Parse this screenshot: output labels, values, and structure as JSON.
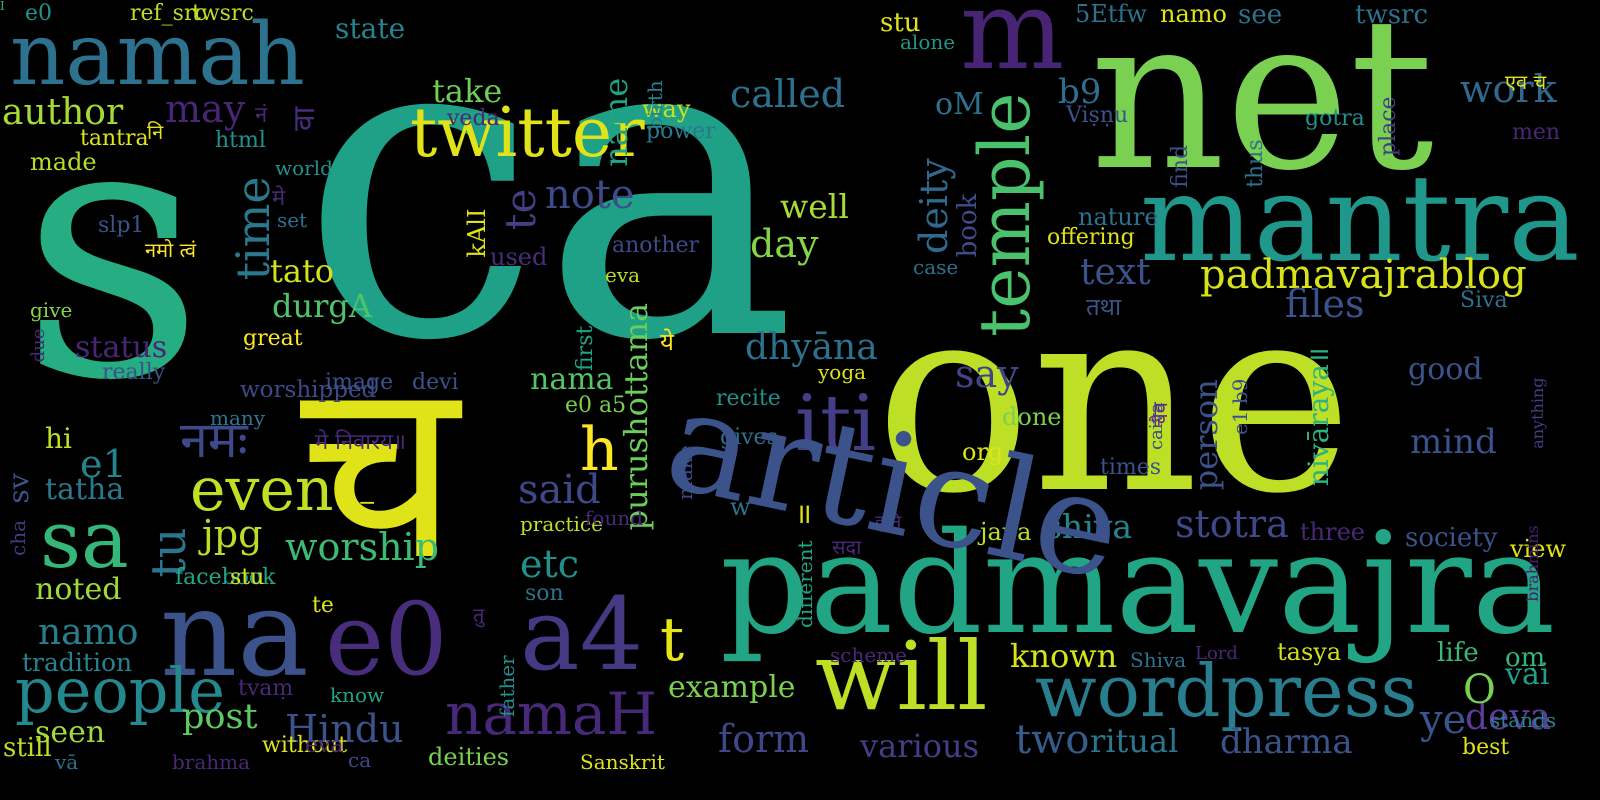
{
  "words": [
    {
      "text": "ca",
      "color": "#1fa187"
    },
    {
      "text": "s",
      "color": "#26ad81"
    },
    {
      "text": "one",
      "color": "#bddf26"
    },
    {
      "text": "net",
      "color": "#7ad151"
    },
    {
      "text": "च",
      "color": "#dfe318"
    },
    {
      "text": "padmavajra",
      "color": "#21a585"
    },
    {
      "text": "mantra",
      "color": "#1f988b"
    },
    {
      "text": "namah",
      "color": "#2c728e"
    },
    {
      "text": "na",
      "color": "#3b528b"
    },
    {
      "text": "e0",
      "color": "#472d7b"
    },
    {
      "text": "a4",
      "color": "#443983"
    },
    {
      "text": "m",
      "color": "#482475"
    },
    {
      "text": "will",
      "color": "#bddf26"
    },
    {
      "text": "twitter",
      "color": "#dfe318"
    },
    {
      "text": "iti",
      "color": "#433e85"
    },
    {
      "text": "sa",
      "color": "#35b779"
    },
    {
      "text": "wordpress",
      "color": "#287d8e"
    },
    {
      "text": "people",
      "color": "#23898e"
    },
    {
      "text": "namaH",
      "color": "#482878"
    },
    {
      "text": "temple",
      "color": "#4ac16d"
    },
    {
      "text": "padmavajrablog",
      "color": "#d8e219"
    },
    {
      "text": "even",
      "color": "#c2df23"
    },
    {
      "text": "time",
      "color": "#2a788e"
    },
    {
      "text": "नमः",
      "color": "#3e4989"
    },
    {
      "text": "author",
      "color": "#a5db36"
    },
    {
      "text": "worship",
      "color": "#3bbb75"
    },
    {
      "text": "dhyāna",
      "color": "#2c718e"
    },
    {
      "text": "called",
      "color": "#2d708e"
    },
    {
      "text": "note",
      "color": "#3e4a89"
    },
    {
      "text": "well",
      "color": "#a8db34"
    },
    {
      "text": "day",
      "color": "#86d549"
    },
    {
      "text": "deity",
      "color": "#31688e"
    },
    {
      "text": "book",
      "color": "#3e4c8a"
    },
    {
      "text": "text",
      "color": "#3b528b"
    },
    {
      "text": "files",
      "color": "#3b528b"
    },
    {
      "text": "say",
      "color": "#414487"
    },
    {
      "text": "work",
      "color": "#30688e"
    },
    {
      "text": "stotra",
      "color": "#3f4889"
    },
    {
      "text": "shiva",
      "color": "#25848e"
    },
    {
      "text": "form",
      "color": "#3f4788"
    },
    {
      "text": "two",
      "color": "#365c8d"
    },
    {
      "text": "ritual",
      "color": "#2a768e"
    },
    {
      "text": "dharma",
      "color": "#3b528b"
    },
    {
      "text": "deva",
      "color": "#5e3c99"
    },
    {
      "text": "Hindu",
      "color": "#3b528b"
    },
    {
      "text": "post",
      "color": "#5ec962"
    },
    {
      "text": "various",
      "color": "#433e85"
    },
    {
      "text": "example",
      "color": "#7ad151"
    },
    {
      "text": "known",
      "color": "#d8e219"
    },
    {
      "text": "etc",
      "color": "#20928c"
    },
    {
      "text": "said",
      "color": "#3e4989"
    },
    {
      "text": "purushottama",
      "color": "#6ccd5a"
    },
    {
      "text": "nama",
      "color": "#52c569"
    },
    {
      "text": "namo",
      "color": "#277f8e"
    },
    {
      "text": "tradition",
      "color": "#26828e"
    },
    {
      "text": "seen",
      "color": "#9fda3a"
    },
    {
      "text": "noted",
      "color": "#a0da39"
    },
    {
      "text": "jpg",
      "color": "#b8de29"
    },
    {
      "text": "tato",
      "color": "#d2e21b"
    },
    {
      "text": "durgA",
      "color": "#4ec36b"
    },
    {
      "text": "tu",
      "color": "#2b758e"
    },
    {
      "text": "h",
      "color": "#fde725"
    },
    {
      "text": "t",
      "color": "#e5e419"
    },
    {
      "text": "ye",
      "color": "#39568c"
    },
    {
      "text": "te",
      "color": "#433e85"
    },
    {
      "text": "take",
      "color": "#6ece58"
    },
    {
      "text": "name",
      "color": "#20a486"
    },
    {
      "text": "b9",
      "color": "#2e6e8e"
    },
    {
      "text": "status",
      "color": "#482576"
    },
    {
      "text": "tatha",
      "color": "#2a788e"
    },
    {
      "text": "e1",
      "color": "#25858e"
    },
    {
      "text": "may",
      "color": "#482576"
    },
    {
      "text": "person",
      "color": "#3b528b"
    },
    {
      "text": "nivāraya॥",
      "color": "#2db27d"
    },
    {
      "text": "O",
      "color": "#75d054"
    },
    {
      "text": "oM",
      "color": "#2c728e"
    },
    {
      "text": "mind",
      "color": "#3a538b"
    },
    {
      "text": "good",
      "color": "#3b528b"
    },
    {
      "text": "society",
      "color": "#3b528b"
    },
    {
      "text": "three",
      "color": "#482878"
    },
    {
      "text": "life",
      "color": "#38b977"
    },
    {
      "text": "tasya",
      "color": "#d0e11c"
    },
    {
      "text": "vai",
      "color": "#1f9e89"
    },
    {
      "text": "stands",
      "color": "#27808e"
    },
    {
      "text": "oṃ",
      "color": "#32b67a"
    },
    {
      "text": "best",
      "color": "#dfe318"
    },
    {
      "text": "view",
      "color": "#dfe318"
    },
    {
      "text": "brahmins",
      "color": "#482071"
    },
    {
      "text": "anything",
      "color": "#433e85"
    },
    {
      "text": "men",
      "color": "#482878"
    },
    {
      "text": "एव च",
      "color": "#e2e418"
    },
    {
      "text": "thus",
      "color": "#2c728e"
    },
    {
      "text": "find",
      "color": "#3b528b"
    },
    {
      "text": "place",
      "color": "#433e85"
    },
    {
      "text": "gotra",
      "color": "#21918c"
    },
    {
      "text": "see",
      "color": "#2c728e"
    },
    {
      "text": "twsrc",
      "color": "#2c728e"
    },
    {
      "text": "5Etfw",
      "color": "#2c728e"
    },
    {
      "text": "namo",
      "color": "#dfe318"
    },
    {
      "text": "stu",
      "color": "#dfe318"
    },
    {
      "text": "alone",
      "color": "#1f978b"
    },
    {
      "text": "Viṣṇu",
      "color": "#3b528b"
    },
    {
      "text": "way",
      "color": "#c8e020"
    },
    {
      "text": "power",
      "color": "#2a788e"
    },
    {
      "text": "birth",
      "color": "#26828e"
    },
    {
      "text": "veda",
      "color": "#482878"
    },
    {
      "text": "e0",
      "color": "#1f958b"
    },
    {
      "text": "ref_src",
      "color": "#bddf26"
    },
    {
      "text": "twsrc",
      "color": "#bddf26"
    },
    {
      "text": "state",
      "color": "#25848e"
    },
    {
      "text": "वा",
      "color": "#4a2c7d"
    },
    {
      "text": "नं",
      "color": "#482878"
    },
    {
      "text": "नि",
      "color": "#dfe318"
    },
    {
      "text": "tantra",
      "color": "#dfe318"
    },
    {
      "text": "html",
      "color": "#21918c"
    },
    {
      "text": "world",
      "color": "#21918c"
    },
    {
      "text": "made",
      "color": "#b5de2b"
    },
    {
      "text": "मे",
      "color": "#482878"
    },
    {
      "text": "set",
      "color": "#2c728e"
    },
    {
      "text": "slp1",
      "color": "#3b528b"
    },
    {
      "text": "नमो त्वं",
      "color": "#fde725"
    },
    {
      "text": "another",
      "color": "#3e4989"
    },
    {
      "text": "eva",
      "color": "#bddf26"
    },
    {
      "text": "case",
      "color": "#2c728e"
    },
    {
      "text": "offering",
      "color": "#dfe318"
    },
    {
      "text": "nature",
      "color": "#2c728e"
    },
    {
      "text": "तथा",
      "color": "#3b528b"
    },
    {
      "text": "Śiva",
      "color": "#2c728e"
    },
    {
      "text": "kAlI",
      "color": "#dfe318"
    },
    {
      "text": "used",
      "color": "#472d7b"
    },
    {
      "text": "ये",
      "color": "#fde725"
    },
    {
      "text": "great",
      "color": "#fde725"
    },
    {
      "text": "give",
      "color": "#86d549"
    },
    {
      "text": "really",
      "color": "#3b528b"
    },
    {
      "text": "due",
      "color": "#482878"
    },
    {
      "text": "worshipped",
      "color": "#3e4989"
    },
    {
      "text": "image",
      "color": "#3b528b"
    },
    {
      "text": "devi",
      "color": "#3b528b"
    },
    {
      "text": "e0 a5",
      "color": "#7ad151"
    },
    {
      "text": "first",
      "color": "#20a486"
    },
    {
      "text": "yoga",
      "color": "#dfe318"
    },
    {
      "text": "recite",
      "color": "#21918c"
    },
    {
      "text": "gives",
      "color": "#2c728e"
    },
    {
      "text": "many",
      "color": "#2a788e"
    },
    {
      "text": "मे निवारय॥",
      "color": "#482878"
    },
    {
      "text": "org",
      "color": "#dfe318"
    },
    {
      "text": "done",
      "color": "#7ad151"
    },
    {
      "text": "चैव",
      "color": "#6a1f8a"
    },
    {
      "text": "caiva",
      "color": "#3e4989"
    },
    {
      "text": "e1 b9",
      "color": "#3b528b"
    },
    {
      "text": "times",
      "color": "#3b528b"
    },
    {
      "text": "hi",
      "color": "#bddf26"
    },
    {
      "text": "।।",
      "color": "#dfe318"
    },
    {
      "text": "sv",
      "color": "#3b528b"
    },
    {
      "text": "w",
      "color": "#2c728e"
    },
    {
      "text": "॥",
      "color": "#dfe318"
    },
    {
      "text": "इति",
      "color": "#482878"
    },
    {
      "text": "japa",
      "color": "#bddf26"
    },
    {
      "text": "सदा",
      "color": "#482878"
    },
    {
      "text": "different",
      "color": "#20a486"
    },
    {
      "text": "make",
      "color": "#3e4989"
    },
    {
      "text": "practice",
      "color": "#bddf26"
    },
    {
      "text": "found",
      "color": "#482878"
    },
    {
      "text": "तु",
      "color": "#482878"
    },
    {
      "text": "son",
      "color": "#2c728e"
    },
    {
      "text": "father",
      "color": "#21918c"
    },
    {
      "text": "cha",
      "color": "#443983"
    },
    {
      "text": "facebook",
      "color": "#22a884"
    },
    {
      "text": "stu",
      "color": "#dfe318"
    },
    {
      "text": "te",
      "color": "#dfe318"
    },
    {
      "text": "tvaṃ",
      "color": "#482878"
    },
    {
      "text": "know",
      "color": "#20a486"
    },
    {
      "text": "scheme",
      "color": "#482878"
    },
    {
      "text": "Shiva",
      "color": "#2c728e"
    },
    {
      "text": "Lord",
      "color": "#482878"
    },
    {
      "text": "still",
      "color": "#bddf26"
    },
    {
      "text": "vā",
      "color": "#2c728e"
    },
    {
      "text": "brahma",
      "color": "#482878"
    },
    {
      "text": "without",
      "color": "#dfe318"
    },
    {
      "text": "eva",
      "color": "#482878"
    },
    {
      "text": "ca",
      "color": "#3e4989"
    },
    {
      "text": "deities",
      "color": "#7ad151"
    },
    {
      "text": "Sanskrit",
      "color": "#dfe318"
    },
    {
      "text": "article",
      "color": "#3b528b"
    },
    {
      "text": "I",
      "color": "#2db27d"
    }
  ]
}
